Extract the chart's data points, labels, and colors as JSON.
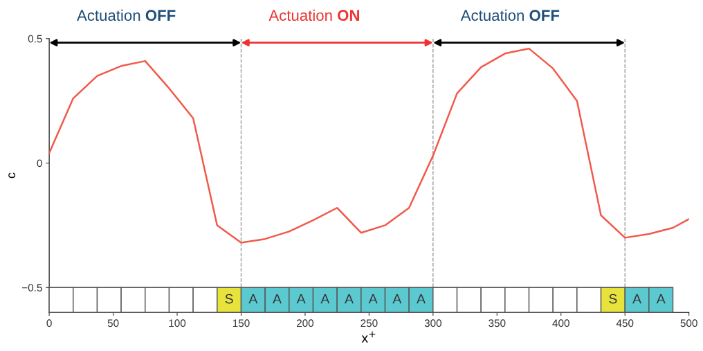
{
  "chart_data": {
    "type": "line",
    "xlabel": "x$^{+}$",
    "ylabel": "c",
    "x": [
      0,
      18.75,
      37.5,
      56.25,
      75,
      93.75,
      112.5,
      131.25,
      150,
      168.75,
      187.5,
      206.25,
      225,
      243.75,
      262.5,
      281.25,
      300,
      318.75,
      337.5,
      356.25,
      375,
      393.75,
      412.5,
      431.25,
      450,
      468.75,
      487.5,
      500
    ],
    "series": [
      {
        "color": "#f05a4a",
        "values": [
          0.04,
          0.26,
          0.35,
          0.39,
          0.41,
          0.3,
          0.18,
          -0.25,
          -0.32,
          -0.305,
          -0.275,
          -0.23,
          -0.18,
          -0.28,
          -0.25,
          -0.18,
          0.03,
          0.28,
          0.385,
          0.44,
          0.46,
          0.38,
          0.25,
          -0.21,
          -0.3,
          -0.285,
          -0.26,
          -0.225
        ]
      }
    ],
    "xlim": [
      0,
      500
    ],
    "ylim": [
      -0.6,
      0.5
    ],
    "xticks": [
      0,
      50,
      100,
      150,
      200,
      250,
      300,
      350,
      400,
      450,
      500
    ],
    "yticks": [
      {
        "value": -0.5,
        "label": "−0.5"
      },
      0,
      0.5
    ],
    "grid": false,
    "legend": false,
    "marker": "none",
    "line_style": "solid",
    "ref_lines": [
      {
        "axis": "x",
        "value": 150,
        "color": "#999999",
        "line_style": "dashed"
      },
      {
        "axis": "x",
        "value": 300,
        "color": "#999999",
        "line_style": "dashed"
      },
      {
        "axis": "x",
        "value": 450,
        "color": "#999999",
        "line_style": "dashed"
      }
    ],
    "annotations": [
      "Actuation OFF",
      "Actuation ON",
      "Actuation OFF"
    ],
    "bands": [
      {
        "axis": "x",
        "from": 0,
        "to": 18.75,
        "color": "#ffffff"
      },
      {
        "axis": "x",
        "from": 18.75,
        "to": 37.5,
        "color": "#ffffff"
      },
      {
        "axis": "x",
        "from": 37.5,
        "to": 56.25,
        "color": "#ffffff"
      },
      {
        "axis": "x",
        "from": 56.25,
        "to": 75,
        "color": "#ffffff"
      },
      {
        "axis": "x",
        "from": 75,
        "to": 93.75,
        "color": "#ffffff"
      },
      {
        "axis": "x",
        "from": 93.75,
        "to": 112.5,
        "color": "#ffffff"
      },
      {
        "axis": "x",
        "from": 112.5,
        "to": 131.25,
        "color": "#ffffff"
      },
      {
        "axis": "x",
        "from": 131.25,
        "to": 150,
        "color": "#e8e23c",
        "label": "S"
      },
      {
        "axis": "x",
        "from": 150,
        "to": 168.75,
        "color": "#5cc8d0",
        "label": "A"
      },
      {
        "axis": "x",
        "from": 168.75,
        "to": 187.5,
        "color": "#5cc8d0",
        "label": "A"
      },
      {
        "axis": "x",
        "from": 187.5,
        "to": 206.25,
        "color": "#5cc8d0",
        "label": "A"
      },
      {
        "axis": "x",
        "from": 206.25,
        "to": 225,
        "color": "#5cc8d0",
        "label": "A"
      },
      {
        "axis": "x",
        "from": 225,
        "to": 243.75,
        "color": "#5cc8d0",
        "label": "A"
      },
      {
        "axis": "x",
        "from": 243.75,
        "to": 262.5,
        "color": "#5cc8d0",
        "label": "A"
      },
      {
        "axis": "x",
        "from": 262.5,
        "to": 281.25,
        "color": "#5cc8d0",
        "label": "A"
      },
      {
        "axis": "x",
        "from": 281.25,
        "to": 300,
        "color": "#5cc8d0",
        "label": "A"
      },
      {
        "axis": "x",
        "from": 300,
        "to": 318.75,
        "color": "#ffffff"
      },
      {
        "axis": "x",
        "from": 318.75,
        "to": 337.5,
        "color": "#ffffff"
      },
      {
        "axis": "x",
        "from": 337.5,
        "to": 356.25,
        "color": "#ffffff"
      },
      {
        "axis": "x",
        "from": 356.25,
        "to": 375,
        "color": "#ffffff"
      },
      {
        "axis": "x",
        "from": 375,
        "to": 393.75,
        "color": "#ffffff"
      },
      {
        "axis": "x",
        "from": 393.75,
        "to": 412.5,
        "color": "#ffffff"
      },
      {
        "axis": "x",
        "from": 412.5,
        "to": 431.25,
        "color": "#ffffff"
      },
      {
        "axis": "x",
        "from": 431.25,
        "to": 450,
        "color": "#e8e23c",
        "label": "S"
      },
      {
        "axis": "x",
        "from": 450,
        "to": 468.75,
        "color": "#5cc8d0",
        "label": "A"
      },
      {
        "axis": "x",
        "from": 468.75,
        "to": 487.5,
        "color": "#5cc8d0",
        "label": "A"
      }
    ]
  }
}
